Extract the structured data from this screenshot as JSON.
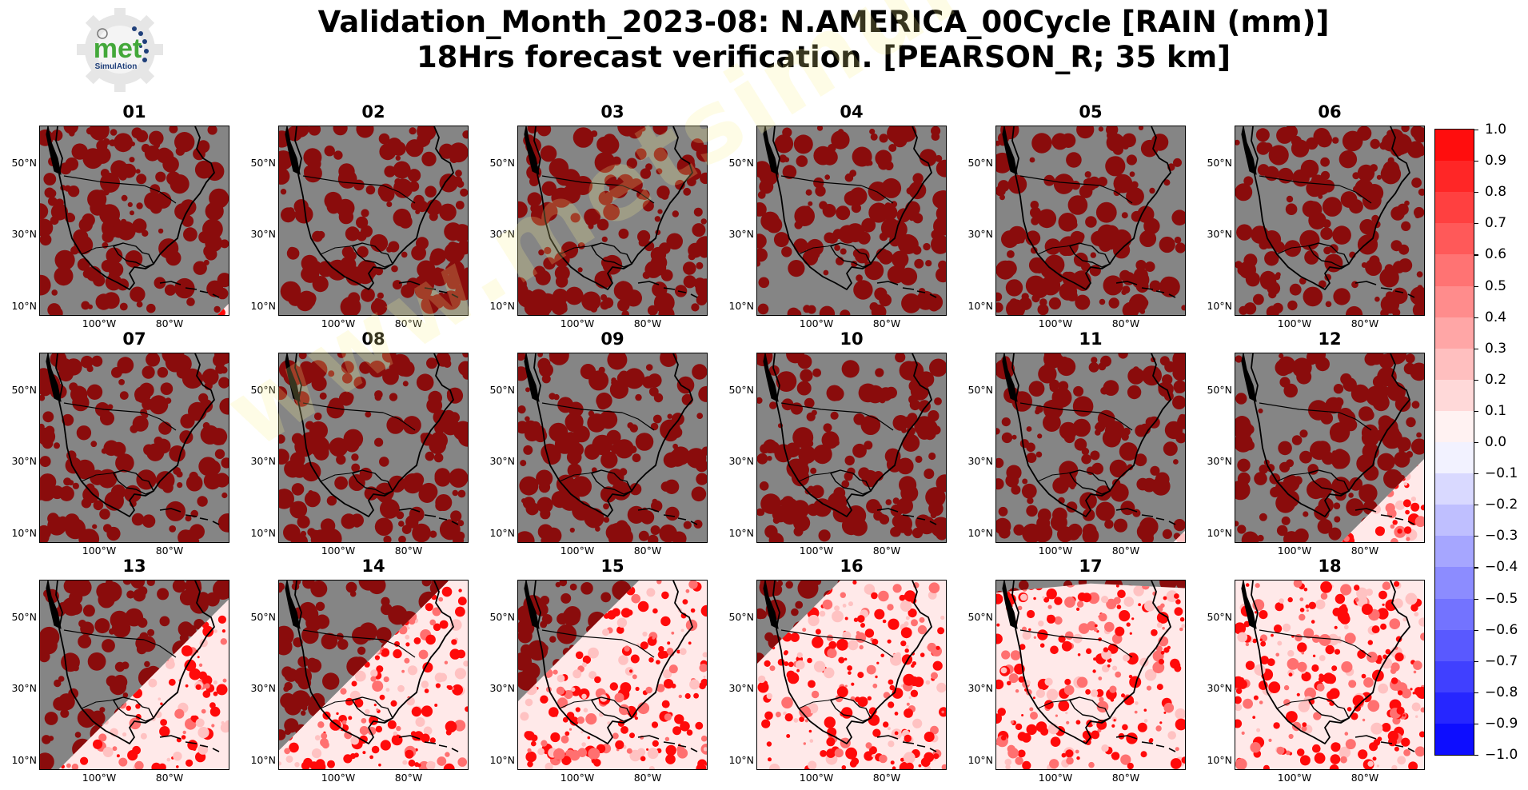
{
  "title_line1": "Validation_Month_2023-08: N.AMERICA_00Cycle [RAIN (mm)]",
  "title_line2": "18Hrs forecast verification.  [PEARSON_R; 35 km]",
  "logo": {
    "word": "met",
    "sub": "SimulAtion"
  },
  "watermark": "www.metsimulation.com",
  "lat_labels": [
    "50°N",
    "30°N",
    "10°N"
  ],
  "lon_labels": [
    "100°W",
    "80°W"
  ],
  "panels": [
    {
      "label": "01",
      "coverage": 0.03
    },
    {
      "label": "02",
      "coverage": 0.0
    },
    {
      "label": "03",
      "coverage": 0.0
    },
    {
      "label": "04",
      "coverage": 0.0
    },
    {
      "label": "05",
      "coverage": 0.0
    },
    {
      "label": "06",
      "coverage": 0.0
    },
    {
      "label": "07",
      "coverage": 0.0
    },
    {
      "label": "08",
      "coverage": 0.0
    },
    {
      "label": "09",
      "coverage": 0.0
    },
    {
      "label": "10",
      "coverage": 0.0
    },
    {
      "label": "11",
      "coverage": 0.03
    },
    {
      "label": "12",
      "coverage": 0.22
    },
    {
      "label": "13",
      "coverage": 0.45
    },
    {
      "label": "14",
      "coverage": 0.55
    },
    {
      "label": "15",
      "coverage": 0.68
    },
    {
      "label": "16",
      "coverage": 0.78
    },
    {
      "label": "17",
      "coverage": 0.92
    },
    {
      "label": "18",
      "coverage": 1.0
    }
  ],
  "colorbar": {
    "min": -1.0,
    "max": 1.0,
    "labels": [
      "1.0",
      "0.9",
      "0.8",
      "0.7",
      "0.6",
      "0.5",
      "0.4",
      "0.3",
      "0.2",
      "0.1",
      "0.0",
      "−0.1",
      "−0.2",
      "−0.3",
      "−0.4",
      "−0.5",
      "−0.6",
      "−0.7",
      "−0.8",
      "−0.9",
      "−1.0"
    ],
    "max_color": "#ff0000",
    "min_color": "#0000ff",
    "mid_color": "#ffffff"
  },
  "colors": {
    "land_overlay": "#8b0000",
    "ocean_bg": "#858585",
    "coast": "#000000"
  }
}
